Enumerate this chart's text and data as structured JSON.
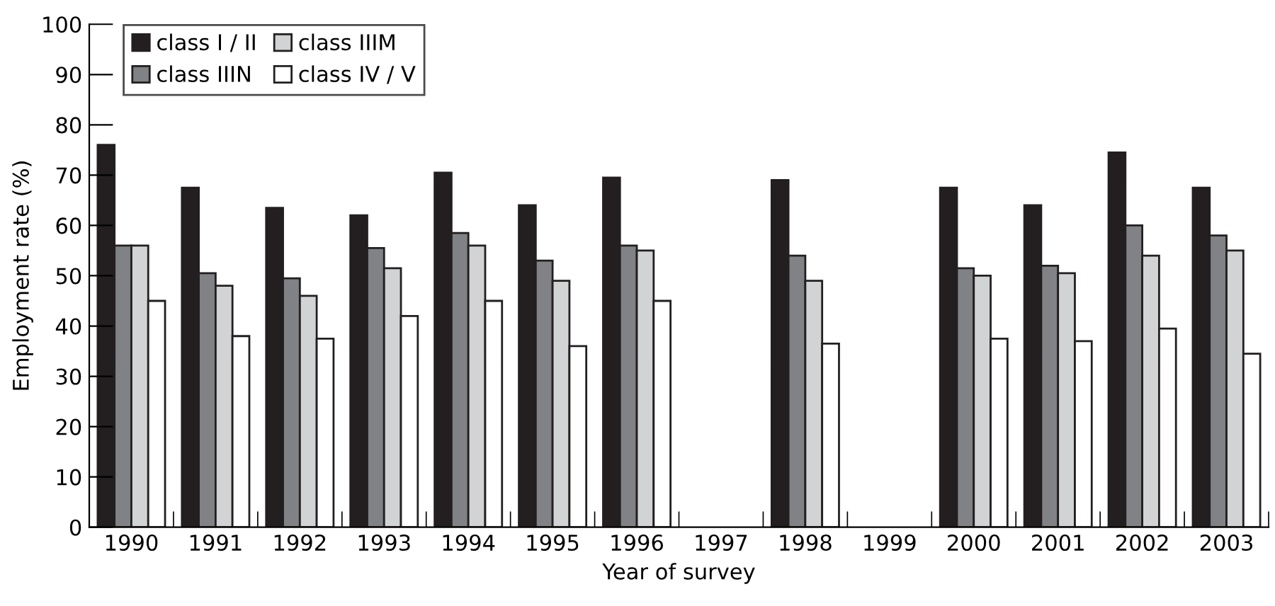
{
  "chart_data": {
    "type": "bar",
    "xlabel": "Year of survey",
    "ylabel": "Employment rate (%)",
    "categories": [
      "1990",
      "1991",
      "1992",
      "1993",
      "1994",
      "1995",
      "1996",
      "1997",
      "1998",
      "1999",
      "2000",
      "2001",
      "2002",
      "2003"
    ],
    "series": [
      {
        "name": "class I / II",
        "color": "#231f20",
        "values": [
          76,
          67.5,
          63.5,
          62,
          70.5,
          64,
          69.5,
          null,
          69,
          null,
          67.5,
          64,
          74.5,
          67.5
        ]
      },
      {
        "name": "class IIIN",
        "color": "#808285",
        "values": [
          56,
          50.5,
          49.5,
          55.5,
          58.5,
          53,
          56,
          null,
          54,
          null,
          51.5,
          52,
          60,
          58
        ]
      },
      {
        "name": "class IIIM",
        "color": "#d1d3d4",
        "values": [
          56,
          48,
          46,
          51.5,
          56,
          49,
          55,
          null,
          49,
          null,
          50,
          50.5,
          54,
          55
        ]
      },
      {
        "name": "class IV / V",
        "color": "#ffffff",
        "values": [
          45,
          38,
          37.5,
          42,
          45,
          36,
          45,
          null,
          36.5,
          null,
          37.5,
          37,
          39.5,
          34.5
        ]
      }
    ],
    "ylim": [
      0,
      100
    ],
    "yticks": [
      0,
      10,
      20,
      30,
      40,
      50,
      60,
      70,
      80,
      90,
      100
    ],
    "grid": false,
    "legend": "top left"
  }
}
